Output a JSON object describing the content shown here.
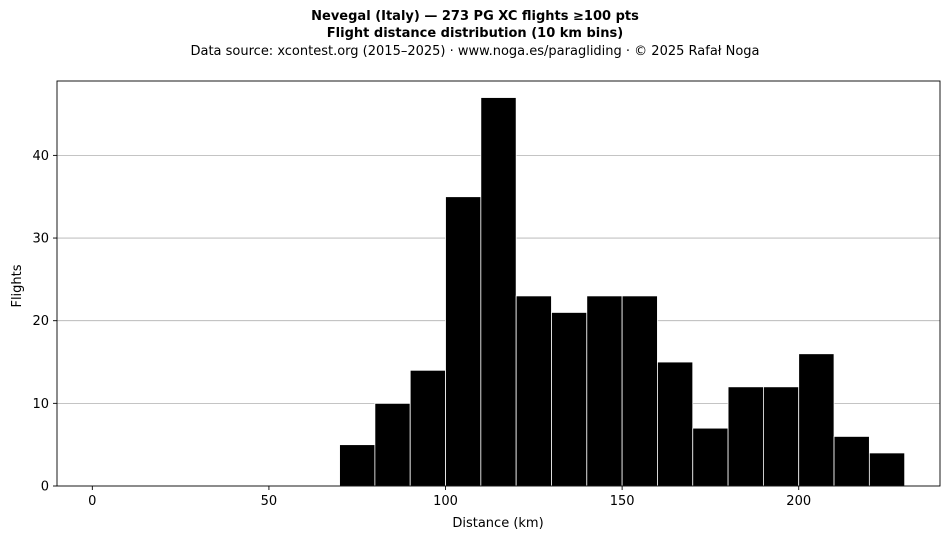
{
  "header": {
    "title_line1": "Nevegal (Italy)  —  273 PG XC flights ≥100 pts",
    "title_line2": "Flight distance distribution (10 km bins)",
    "subtitle": "Data source: xcontest.org (2015–2025)  ·  www.noga.es/paragliding  ·  © 2025 Rafał Noga"
  },
  "chart_data": {
    "type": "bar",
    "xlabel": "Distance (km)",
    "ylabel": "Flights",
    "xlim": [
      -10,
      240
    ],
    "ylim": [
      0,
      49
    ],
    "x_ticks": [
      0,
      50,
      100,
      150,
      200
    ],
    "y_ticks": [
      0,
      10,
      20,
      30,
      40
    ],
    "grid": "horizontal",
    "bin_width": 10,
    "bar_color": "#000000",
    "edge_color": "#ffffff",
    "bins": [
      {
        "start": 70,
        "count": 5
      },
      {
        "start": 80,
        "count": 10
      },
      {
        "start": 90,
        "count": 14
      },
      {
        "start": 100,
        "count": 35
      },
      {
        "start": 110,
        "count": 47
      },
      {
        "start": 120,
        "count": 23
      },
      {
        "start": 130,
        "count": 21
      },
      {
        "start": 140,
        "count": 23
      },
      {
        "start": 150,
        "count": 23
      },
      {
        "start": 160,
        "count": 15
      },
      {
        "start": 170,
        "count": 7
      },
      {
        "start": 180,
        "count": 12
      },
      {
        "start": 190,
        "count": 12
      },
      {
        "start": 200,
        "count": 16
      },
      {
        "start": 210,
        "count": 6
      },
      {
        "start": 220,
        "count": 4
      }
    ]
  }
}
